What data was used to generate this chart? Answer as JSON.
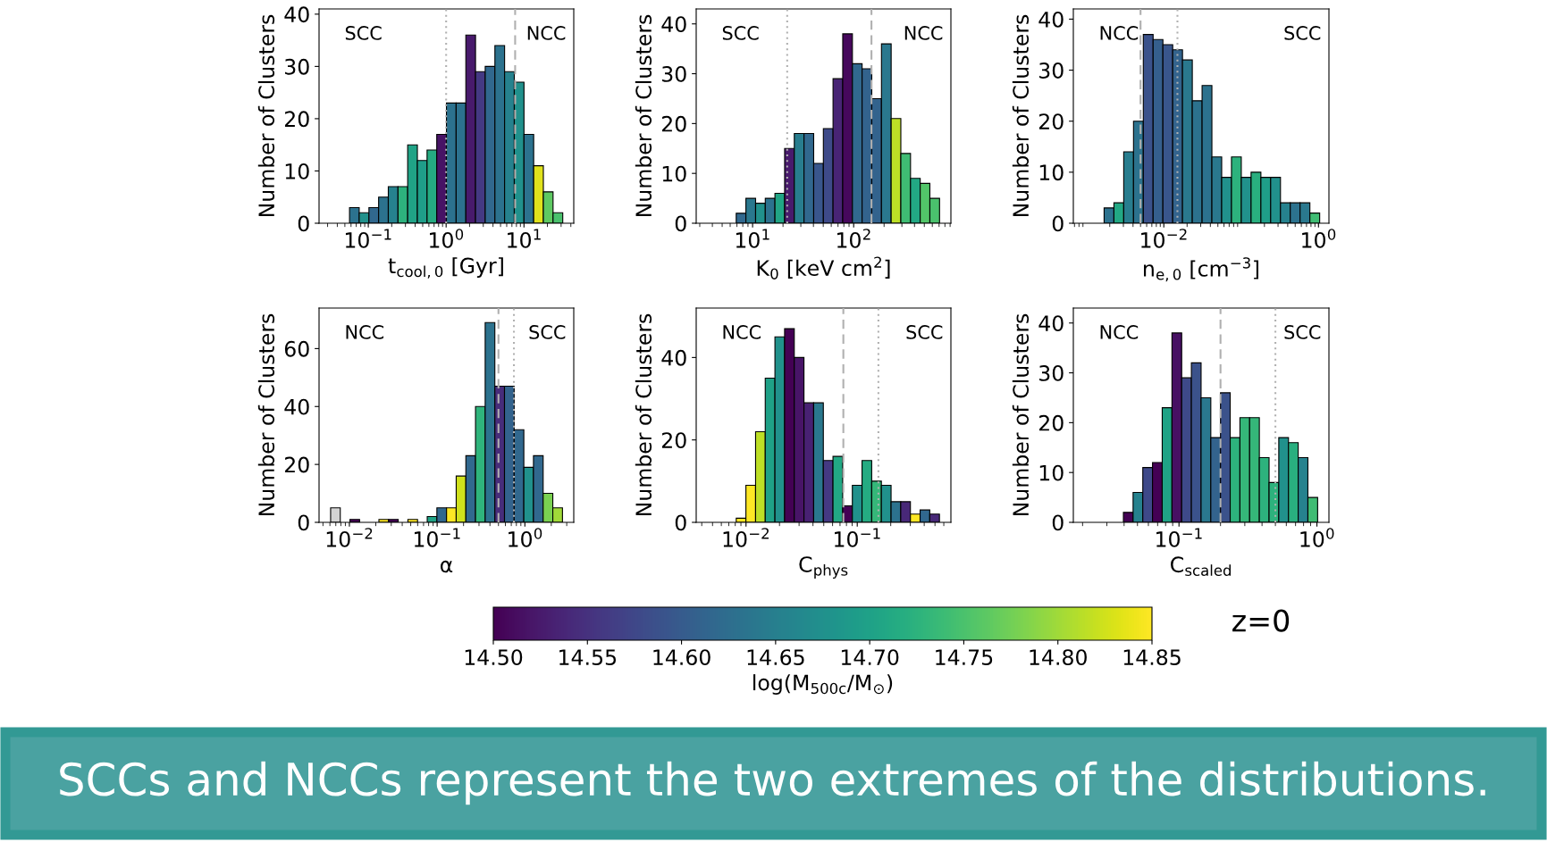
{
  "chart_data": [
    {
      "type": "histogram",
      "ylabel": "Number of Clusters",
      "xlabel": "t$_{cool,0}$ [Gyr]",
      "log": "x",
      "xlim": [
        0.0233,
        43.6
      ],
      "xticks": [
        {
          "value": 0.1,
          "label": "10$^{−1}$"
        },
        {
          "value": 1,
          "label": "10$^{0}$"
        },
        {
          "value": 10,
          "label": "10$^{1}$"
        }
      ],
      "ylim": [
        0,
        41
      ],
      "yticks": [
        0,
        10,
        20,
        30,
        40
      ],
      "grid": false,
      "bins": [
        0.0574,
        0.0764,
        0.1019,
        0.1357,
        0.1807,
        0.2407,
        0.3206,
        0.427,
        0.5689,
        0.7577,
        1.009,
        1.344,
        1.791,
        2.385,
        3.177,
        4.232,
        5.636,
        7.507,
        10.0,
        13.32,
        17.74,
        23.63,
        31.48
      ],
      "values": [
        3,
        2,
        3,
        5,
        7,
        7,
        15,
        12,
        14,
        17,
        23,
        23,
        36,
        29,
        30,
        34,
        29,
        27,
        17,
        11,
        6,
        2
      ],
      "colors": [
        "#2c728e",
        "#21918c",
        "#31688e",
        "#2c728e",
        "#26828e",
        "#2db27d",
        "#20a386",
        "#1f9e89",
        "#25ab82",
        "#471365",
        "#2c728e",
        "#2c728e",
        "#481a6c",
        "#443983",
        "#31688e",
        "#2c728e",
        "#26828e",
        "#21918c",
        "#2c728e",
        "#e0e21c",
        "#5ec962",
        "#4ac16d"
      ],
      "ref_lines": [
        {
          "axis": "x",
          "value": 1,
          "line_style": "dotted",
          "color": "#b0b0b0"
        },
        {
          "axis": "x",
          "value": 7.7,
          "line_style": "dashed",
          "color": "#b0b0b0"
        }
      ],
      "annotations": [
        "SCC",
        "NCC"
      ]
    },
    {
      "type": "histogram",
      "ylabel": "Number of Clusters",
      "xlabel": "K$_{0}$ [keV cm$^{2}$]",
      "log": "x",
      "xlim": [
        2.767,
        916.2
      ],
      "xticks": [
        {
          "value": 10,
          "label": "10$^{1}$"
        },
        {
          "value": 100,
          "label": "10$^{2}$"
        }
      ],
      "ylim": [
        0,
        43
      ],
      "yticks": [
        0,
        10,
        20,
        30,
        40
      ],
      "grid": false,
      "bins": [
        6.887,
        8.587,
        10.71,
        13.35,
        16.64,
        20.75,
        25.87,
        32.26,
        40.22,
        50.15,
        62.52,
        77.96,
        97.19,
        121.2,
        151.1,
        188.4,
        234.9,
        292.9,
        365.2,
        455.3,
        567.5,
        707.6
      ],
      "values": [
        2,
        5,
        4,
        5,
        6,
        15,
        18,
        18,
        12,
        19,
        29,
        38,
        32,
        31,
        25,
        36,
        21,
        14,
        9,
        8,
        5
      ],
      "colors": [
        "#31688e",
        "#2a788e",
        "#21918c",
        "#2c728e",
        "#21a585",
        "#481a6c",
        "#287d8e",
        "#31688e",
        "#39568c",
        "#3e4a89",
        "#482475",
        "#46085c",
        "#31688e",
        "#33638d",
        "#33638d",
        "#2a788e",
        "#bddf26",
        "#3fbc73",
        "#22a884",
        "#52c569",
        "#4ac16d"
      ],
      "ref_lines": [
        {
          "axis": "x",
          "value": 22,
          "line_style": "dotted",
          "color": "#b0b0b0"
        },
        {
          "axis": "x",
          "value": 150,
          "line_style": "dashed",
          "color": "#b0b0b0"
        }
      ],
      "annotations": [
        "SCC",
        "NCC"
      ]
    },
    {
      "type": "histogram",
      "ylabel": "Number of Clusters",
      "xlabel": "n$_{e,0}$ [cm$^{−3}$]",
      "log": "x",
      "xlim": [
        0.000676,
        1.365
      ],
      "xticks": [
        {
          "value": 0.01,
          "label": "10$^{−2}$"
        },
        {
          "value": 1,
          "label": "10$^{0}$"
        }
      ],
      "ylim": [
        0,
        42
      ],
      "yticks": [
        0,
        10,
        20,
        30,
        40
      ],
      "grid": false,
      "bins": [
        0.00169,
        0.002263,
        0.00303,
        0.004056,
        0.00543,
        0.00727,
        0.009732,
        0.01303,
        0.01744,
        0.02335,
        0.03126,
        0.04185,
        0.05602,
        0.075,
        0.1004,
        0.1344,
        0.18,
        0.2409,
        0.3225,
        0.4317,
        0.5781,
        0.7739,
        1.036
      ],
      "values": [
        3,
        4,
        14,
        20,
        37,
        36,
        35,
        34,
        32,
        24,
        27,
        13,
        9,
        13,
        9,
        10,
        9,
        9,
        4,
        4,
        4,
        2
      ],
      "colors": [
        "#2c728e",
        "#22a884",
        "#287d8e",
        "#2c728e",
        "#3b528b",
        "#355f8d",
        "#39568c",
        "#33638d",
        "#2a788e",
        "#2c728e",
        "#2c728e",
        "#2a788e",
        "#21918c",
        "#2db27d",
        "#21918c",
        "#29af7f",
        "#1f9e89",
        "#21918c",
        "#26828e",
        "#2c728e",
        "#2a788e",
        "#3fbc73"
      ],
      "ref_lines": [
        {
          "axis": "x",
          "value": 0.005,
          "line_style": "dashed",
          "color": "#b0b0b0"
        },
        {
          "axis": "x",
          "value": 0.015,
          "line_style": "dotted",
          "color": "#b0b0b0"
        }
      ],
      "annotations": [
        "NCC",
        "SCC"
      ]
    },
    {
      "type": "histogram",
      "ylabel": "Number of Clusters",
      "xlabel": "α",
      "log": "x",
      "xlim": [
        0.00451,
        3.606
      ],
      "xticks": [
        {
          "value": 0.01,
          "label": "10$^{−2}$"
        },
        {
          "value": 0.1,
          "label": "10$^{−1}$"
        },
        {
          "value": 1,
          "label": "10$^{0}$"
        }
      ],
      "ylim": [
        0,
        74
      ],
      "yticks": [
        0,
        20,
        40,
        60
      ],
      "grid": false,
      "bins": [
        0.00611,
        0.007871,
        0.01014,
        0.01307,
        0.01684,
        0.0217,
        0.02796,
        0.03602,
        0.04642,
        0.05981,
        0.07709,
        0.09933,
        0.128,
        0.1649,
        0.2125,
        0.2738,
        0.3528,
        0.4546,
        0.5858,
        0.7549,
        0.9727,
        1.253,
        1.615,
        2.081,
        2.682
      ],
      "values": [
        5,
        0,
        1,
        0,
        0,
        1,
        1,
        0,
        1,
        0,
        2,
        5,
        5,
        16,
        23,
        40,
        69,
        47,
        47,
        32,
        19,
        23,
        10,
        5
      ],
      "colors": [
        "#d3d3d3",
        null,
        "#440154",
        null,
        null,
        "#fde725",
        "#440154",
        null,
        "#fde725",
        null,
        "#20a386",
        "#31688e",
        "#fde725",
        "#d0e11c",
        "#31688e",
        "#2fb47c",
        "#2c728e",
        "#472d7b",
        "#33638d",
        "#31688e",
        "#21918c",
        "#31688e",
        "#7ad151",
        "#a0da39"
      ],
      "ref_lines": [
        {
          "axis": "x",
          "value": 0.5,
          "line_style": "dashed",
          "color": "#b0b0b0"
        },
        {
          "axis": "x",
          "value": 0.75,
          "line_style": "dotted",
          "color": "#b0b0b0"
        }
      ],
      "annotations": [
        "NCC",
        "SCC"
      ]
    },
    {
      "type": "histogram",
      "ylabel": "Number of Clusters",
      "xlabel": "C$_{phys}$",
      "log": "x",
      "xlim": [
        0.003565,
        0.695
      ],
      "xticks": [
        {
          "value": 0.01,
          "label": "10$^{−2}$"
        },
        {
          "value": 0.1,
          "label": "10$^{−1}$"
        }
      ],
      "ylim": [
        0,
        52
      ],
      "yticks": [
        0,
        20,
        40
      ],
      "grid": false,
      "bins": [
        0.008166,
        0.009977,
        0.01219,
        0.01489,
        0.0182,
        0.02223,
        0.02716,
        0.03319,
        0.04055,
        0.04955,
        0.06053,
        0.07396,
        0.09036,
        0.1104,
        0.1349,
        0.1648,
        0.2014,
        0.246,
        0.3006,
        0.3673,
        0.4487,
        0.5483
      ],
      "values": [
        1,
        9,
        22,
        35,
        45,
        47,
        40,
        29,
        29,
        15,
        16,
        4,
        9,
        15,
        10,
        9,
        5,
        5,
        2,
        3,
        2
      ],
      "colors": [
        "#fde725",
        "#fde725",
        "#bddf26",
        "#1fa187",
        "#21918c",
        "#440154",
        "#481467",
        "#482173",
        "#2a788e",
        "#443983",
        "#22a884",
        "#440154",
        "#21918c",
        "#25ab82",
        "#35b779",
        "#21918c",
        "#2c728e",
        "#482878",
        "#fde725",
        "#31688e",
        "#482878"
      ],
      "ref_lines": [
        {
          "axis": "x",
          "value": 0.075,
          "line_style": "dashed",
          "color": "#b0b0b0"
        },
        {
          "axis": "x",
          "value": 0.155,
          "line_style": "dotted",
          "color": "#b0b0b0"
        }
      ],
      "annotations": [
        "NCC",
        "SCC"
      ]
    },
    {
      "type": "histogram",
      "ylabel": "Number of Clusters",
      "xlabel": "C$_{scaled}$",
      "log": "x",
      "xlim": [
        0.01714,
        1.222
      ],
      "xticks": [
        {
          "value": 0.1,
          "label": "10$^{−1}$"
        },
        {
          "value": 1,
          "label": "10$^{0}$"
        }
      ],
      "ylim": [
        0,
        43
      ],
      "yticks": [
        0,
        10,
        20,
        30,
        40
      ],
      "grid": false,
      "bins": [
        0.03954,
        0.04648,
        0.05466,
        0.06428,
        0.07558,
        0.08892,
        0.1046,
        0.123,
        0.1446,
        0.1701,
        0.2,
        0.2351,
        0.2765,
        0.3252,
        0.3824,
        0.4498,
        0.5289,
        0.622,
        0.7314,
        0.8602,
        1.012
      ],
      "values": [
        2,
        6,
        11,
        12,
        23,
        38,
        29,
        32,
        25,
        17,
        26,
        17,
        21,
        21,
        13,
        8,
        17,
        16,
        13,
        5
      ],
      "colors": [
        "#440154",
        "#26828e",
        "#3e4989",
        "#440154",
        "#20a386",
        "#471063",
        "#3e4989",
        "#3b528b",
        "#2a788e",
        "#33638d",
        "#3b528b",
        "#2db27d",
        "#35b779",
        "#35b779",
        "#2db27d",
        "#2db27d",
        "#21918c",
        "#29af7f",
        "#26828e",
        "#3fbc73"
      ],
      "ref_lines": [
        {
          "axis": "x",
          "value": 0.2,
          "line_style": "dashed",
          "color": "#b0b0b0"
        },
        {
          "axis": "x",
          "value": 0.5,
          "line_style": "dotted",
          "color": "#b0b0b0"
        }
      ],
      "clabel": "log(M$_{500c}$/M$_{⊙}$)",
      "clim": [
        14.5,
        14.85
      ],
      "cticks": [
        {
          "value": 14.5,
          "label": "14.50"
        },
        {
          "value": 14.55,
          "label": "14.55"
        },
        {
          "value": 14.6,
          "label": "14.60"
        },
        {
          "value": 14.65,
          "label": "14.65"
        },
        {
          "value": 14.7,
          "label": "14.70"
        },
        {
          "value": 14.75,
          "label": "14.75"
        },
        {
          "value": 14.8,
          "label": "14.80"
        },
        {
          "value": 14.85,
          "label": "14.85"
        }
      ],
      "annotations": [
        "NCC",
        "SCC",
        "z=0",
        "SCCs and NCCs represent the two extremes of the distributions."
      ]
    }
  ]
}
